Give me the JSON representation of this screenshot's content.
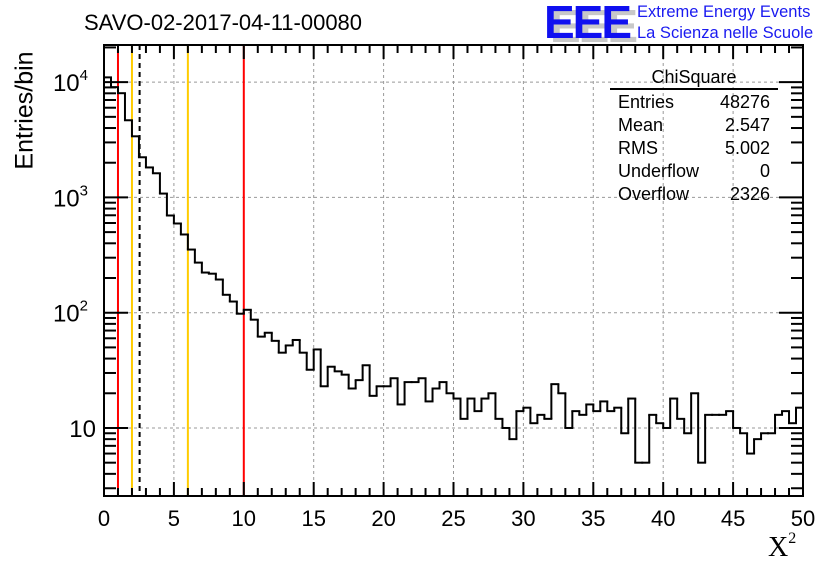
{
  "chart_data": {
    "type": "histogram",
    "title": "SAVO-02-2017-04-11-00080",
    "xlabel": "X",
    "xlabel_sup": "2",
    "ylabel": "Entries/bin",
    "xlim": [
      0,
      50
    ],
    "ylim": [
      2.57,
      21000
    ],
    "yscale": "log",
    "grid": true,
    "bin_width": 0.5,
    "x_ticks": [
      "0",
      "5",
      "10",
      "15",
      "20",
      "25",
      "30",
      "35",
      "40",
      "45",
      "50"
    ],
    "y_ticks": [
      {
        "value": 10,
        "base": "10",
        "exp": ""
      },
      {
        "value": 100,
        "base": "10",
        "exp": "2"
      },
      {
        "value": 1000,
        "base": "10",
        "exp": "3"
      },
      {
        "value": 10000,
        "base": "10",
        "exp": "4"
      }
    ],
    "values": [
      11000,
      9050,
      8020,
      4670,
      3390,
      2230,
      1820,
      1620,
      1080,
      697,
      594,
      477,
      353,
      272,
      223,
      218,
      194,
      143,
      125,
      98,
      106,
      87,
      62,
      67,
      57,
      45,
      52,
      58,
      45,
      32,
      48,
      23,
      34,
      31,
      29,
      22,
      26,
      35,
      19,
      23,
      23,
      27,
      16,
      25,
      25,
      27,
      17,
      22,
      25,
      20,
      18,
      12,
      18,
      14,
      18,
      20,
      12,
      10,
      8,
      14,
      15,
      11,
      13,
      12,
      24,
      20,
      10,
      14,
      13,
      16,
      14,
      17,
      14,
      15,
      9,
      18,
      5,
      5,
      13,
      11,
      10,
      18,
      12,
      9,
      20,
      5,
      13,
      13,
      13,
      14,
      10,
      9,
      6,
      8,
      9,
      9,
      13,
      14,
      11,
      15
    ],
    "vlines": [
      {
        "x": 1,
        "color": "#ff0000",
        "style": "solid"
      },
      {
        "x": 2,
        "color": "#ffcc00",
        "style": "solid"
      },
      {
        "x": 2.547,
        "color": "#000000",
        "style": "dashed"
      },
      {
        "x": 6,
        "color": "#ffcc00",
        "style": "solid"
      },
      {
        "x": 10,
        "color": "#ff0000",
        "style": "solid"
      }
    ],
    "legend": "top-right"
  },
  "stats": {
    "name": "ChiSquare",
    "rows": [
      {
        "label": "Entries",
        "value": "48276"
      },
      {
        "label": "Mean",
        "value": "2.547"
      },
      {
        "label": "RMS",
        "value": "5.002"
      },
      {
        "label": "Underflow",
        "value": "0"
      },
      {
        "label": "Overflow",
        "value": "2326"
      }
    ]
  },
  "logo": {
    "mark": "EEE",
    "line1": "Extreme Energy Events",
    "line2": "La Scienza nelle Scuole",
    "color": "#1a1af0"
  }
}
